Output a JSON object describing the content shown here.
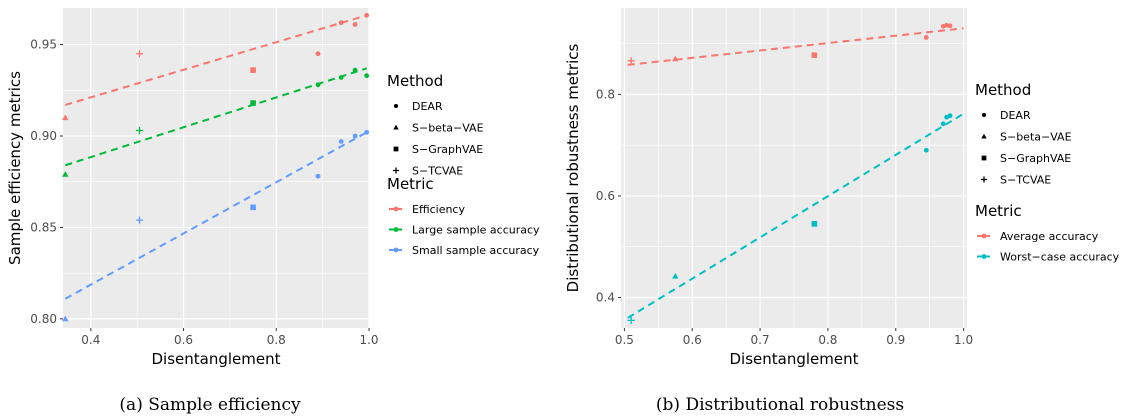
{
  "chart_data": [
    {
      "type": "scatter",
      "caption": "(a) Sample efficiency",
      "xlabel": "Disentanglement",
      "ylabel": "Sample efficiency metrics",
      "xlim": [
        0.34,
        1.0
      ],
      "ylim": [
        0.795,
        0.97
      ],
      "xticks": [
        0.4,
        0.6,
        0.8,
        1.0
      ],
      "xtick_labels": [
        "0.4",
        "0.6",
        "0.8",
        "1.0"
      ],
      "yticks": [
        0.8,
        0.85,
        0.9,
        0.95
      ],
      "ytick_labels": [
        "0.80",
        "0.85",
        "0.90",
        "0.95"
      ],
      "legend_method_title": "Method",
      "legend_method": [
        {
          "name": "DEAR",
          "shape": "circle"
        },
        {
          "name": "S−beta−VAE",
          "shape": "triangle"
        },
        {
          "name": "S−GraphVAE",
          "shape": "square"
        },
        {
          "name": "S−TCVAE",
          "shape": "plus"
        }
      ],
      "legend_metric_title": "Metric",
      "series": [
        {
          "name": "Efficiency",
          "color": "#F8766D",
          "points": [
            {
              "x": 0.345,
              "y": 0.91,
              "shape": "triangle"
            },
            {
              "x": 0.505,
              "y": 0.945,
              "shape": "plus"
            },
            {
              "x": 0.75,
              "y": 0.936,
              "shape": "square"
            },
            {
              "x": 0.89,
              "y": 0.945,
              "shape": "circle"
            },
            {
              "x": 0.94,
              "y": 0.962,
              "shape": "circle"
            },
            {
              "x": 0.97,
              "y": 0.961,
              "shape": "circle"
            },
            {
              "x": 0.995,
              "y": 0.966,
              "shape": "circle"
            }
          ],
          "fit": [
            0.917,
            0.966
          ]
        },
        {
          "name": "Large sample accuracy",
          "color": "#00BA38",
          "points": [
            {
              "x": 0.345,
              "y": 0.879,
              "shape": "triangle"
            },
            {
              "x": 0.505,
              "y": 0.903,
              "shape": "plus"
            },
            {
              "x": 0.75,
              "y": 0.918,
              "shape": "square"
            },
            {
              "x": 0.89,
              "y": 0.928,
              "shape": "circle"
            },
            {
              "x": 0.94,
              "y": 0.932,
              "shape": "circle"
            },
            {
              "x": 0.97,
              "y": 0.936,
              "shape": "circle"
            },
            {
              "x": 0.995,
              "y": 0.933,
              "shape": "circle"
            }
          ],
          "fit": [
            0.884,
            0.937
          ]
        },
        {
          "name": "Small sample accuracy",
          "color": "#619CFF",
          "points": [
            {
              "x": 0.345,
              "y": 0.8,
              "shape": "triangle"
            },
            {
              "x": 0.505,
              "y": 0.854,
              "shape": "plus"
            },
            {
              "x": 0.75,
              "y": 0.861,
              "shape": "square"
            },
            {
              "x": 0.89,
              "y": 0.878,
              "shape": "circle"
            },
            {
              "x": 0.94,
              "y": 0.897,
              "shape": "circle"
            },
            {
              "x": 0.97,
              "y": 0.9,
              "shape": "circle"
            },
            {
              "x": 0.995,
              "y": 0.902,
              "shape": "circle"
            }
          ],
          "fit": [
            0.811,
            0.902
          ]
        }
      ]
    },
    {
      "type": "scatter",
      "caption": "(b) Distributional robustness",
      "xlabel": "Disentanglement",
      "ylabel": "Distributional robustness metrics",
      "xlim": [
        0.495,
        1.005
      ],
      "ylim": [
        0.34,
        0.97
      ],
      "xticks": [
        0.5,
        0.6,
        0.7,
        0.8,
        0.9,
        1.0
      ],
      "xtick_labels": [
        "0.5",
        "0.6",
        "0.7",
        "0.8",
        "0.9",
        "1.0"
      ],
      "yticks": [
        0.4,
        0.6,
        0.8
      ],
      "ytick_labels": [
        "0.4",
        "0.6",
        "0.8"
      ],
      "legend_method_title": "Method",
      "legend_method": [
        {
          "name": "DEAR",
          "shape": "circle"
        },
        {
          "name": "S−beta−VAE",
          "shape": "triangle"
        },
        {
          "name": "S−GraphVAE",
          "shape": "square"
        },
        {
          "name": "S−TCVAE",
          "shape": "plus"
        }
      ],
      "legend_metric_title": "Metric",
      "series": [
        {
          "name": "Average accuracy",
          "color": "#F8766D",
          "points": [
            {
              "x": 0.51,
              "y": 0.866,
              "shape": "plus"
            },
            {
              "x": 0.575,
              "y": 0.87,
              "shape": "triangle"
            },
            {
              "x": 0.78,
              "y": 0.877,
              "shape": "square"
            },
            {
              "x": 0.945,
              "y": 0.912,
              "shape": "circle"
            },
            {
              "x": 0.97,
              "y": 0.934,
              "shape": "circle"
            },
            {
              "x": 0.975,
              "y": 0.936,
              "shape": "circle"
            },
            {
              "x": 0.98,
              "y": 0.935,
              "shape": "circle"
            }
          ],
          "fit": [
            0.858,
            0.93
          ]
        },
        {
          "name": "Worst−case accuracy",
          "color": "#00BFC4",
          "points": [
            {
              "x": 0.51,
              "y": 0.355,
              "shape": "plus"
            },
            {
              "x": 0.575,
              "y": 0.442,
              "shape": "triangle"
            },
            {
              "x": 0.78,
              "y": 0.545,
              "shape": "square"
            },
            {
              "x": 0.945,
              "y": 0.69,
              "shape": "circle"
            },
            {
              "x": 0.97,
              "y": 0.742,
              "shape": "circle"
            },
            {
              "x": 0.975,
              "y": 0.755,
              "shape": "circle"
            },
            {
              "x": 0.98,
              "y": 0.758,
              "shape": "circle"
            }
          ],
          "fit": [
            0.36,
            0.762
          ]
        }
      ]
    }
  ]
}
